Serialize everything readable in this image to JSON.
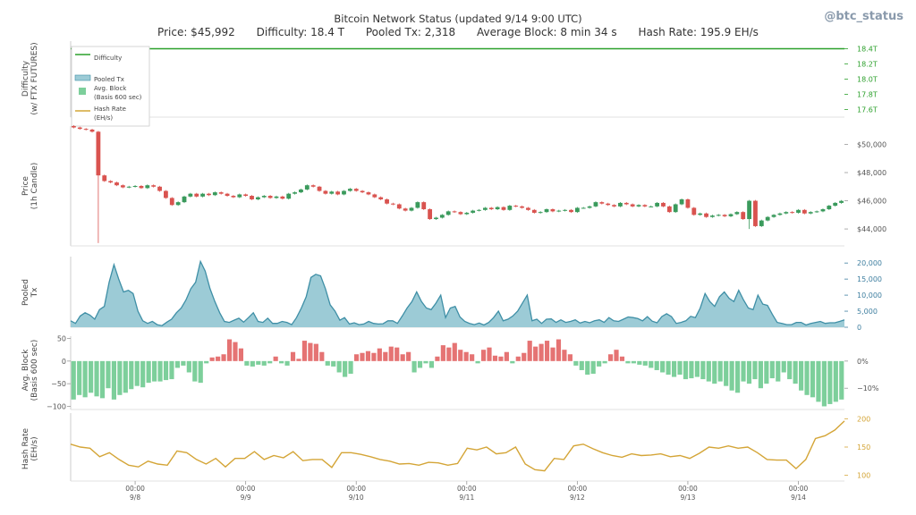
{
  "header": {
    "title": "Bitcoin Network Status (updated 9/14 9:00 UTC)",
    "stats": [
      "Price: $45,992",
      "Difficulty: 18.4 T",
      "Pooled Tx: 2,318",
      "Average Block: 8 min 34 s",
      "Hash Rate: 195.9 EH/s"
    ],
    "handle": "@btc_status"
  },
  "colors": {
    "difficulty": "#2ca02c",
    "candle_up": "#3a9a5c",
    "candle_down": "#d9534f",
    "pooled_fill": "#9ccbd6",
    "pooled_line": "#3f8fa6",
    "block_pos": "#e57373",
    "block_neg": "#7dcf9b",
    "hash_rate": "#d4a537",
    "axis_text": "#555555",
    "pooled_axis": "#3f7fa0"
  },
  "chart_data": [
    {
      "type": "line",
      "panel": "difficulty",
      "ylabel": [
        "Difficulty",
        "(w/ FTX FUTURES)"
      ],
      "yticks": [
        "18.4T",
        "18.2T",
        "18.0T",
        "17.8T",
        "17.6T"
      ],
      "ytick_values": [
        18.4,
        18.2,
        18.0,
        17.8,
        17.6
      ],
      "ylim": [
        17.5,
        18.5
      ],
      "x": [
        0,
        168
      ],
      "values": [
        18.4,
        18.4
      ],
      "legend": [
        "Difficulty",
        "Pooled Tx",
        "Avg. Block\n(Basis 600 sec)",
        "Hash Rate\n(EH/s)"
      ],
      "legend_position": "top-left"
    },
    {
      "type": "candlestick",
      "panel": "price",
      "ylabel": [
        "Price",
        "(1h Candle)"
      ],
      "yticks": [
        "$50,000",
        "$48,000",
        "$46,000",
        "$44,000"
      ],
      "ytick_values": [
        50000,
        48000,
        46000,
        44000
      ],
      "ylim": [
        42800,
        51300
      ],
      "close": [
        51200,
        51100,
        51050,
        50900,
        47800,
        47400,
        47300,
        47100,
        46950,
        47000,
        47050,
        46900,
        47100,
        47000,
        46700,
        46200,
        45700,
        45900,
        46300,
        46500,
        46300,
        46500,
        46400,
        46600,
        46500,
        46350,
        46250,
        46450,
        46350,
        46100,
        46250,
        46350,
        46200,
        46300,
        46150,
        46500,
        46600,
        46800,
        47100,
        47000,
        46700,
        46500,
        46650,
        46450,
        46700,
        46850,
        46700,
        46600,
        46450,
        46250,
        46100,
        45800,
        45750,
        45450,
        45300,
        45500,
        45900,
        45400,
        44700,
        44800,
        45000,
        45250,
        45200,
        45050,
        45150,
        45300,
        45350,
        45500,
        45400,
        45550,
        45350,
        45650,
        45600,
        45500,
        45350,
        45150,
        45200,
        45400,
        45250,
        45300,
        45350,
        45200,
        45500,
        45500,
        45600,
        45900,
        45800,
        45700,
        45600,
        45850,
        45750,
        45600,
        45700,
        45600,
        45600,
        45850,
        45600,
        45200,
        45750,
        46100,
        45500,
        45000,
        45100,
        44850,
        44950,
        45000,
        44900,
        45050,
        45200,
        44700,
        46000,
        44200,
        44600,
        44850,
        45000,
        45100,
        45200,
        45150,
        45350,
        45100,
        45200,
        45250,
        45400,
        45650,
        45850,
        45992
      ]
    },
    {
      "type": "area",
      "panel": "pooled_tx",
      "ylabel": [
        "Pooled",
        "Tx"
      ],
      "yticks": [
        "20,000",
        "15,000",
        "10,000",
        "5,000",
        "0"
      ],
      "ytick_values": [
        20000,
        15000,
        10000,
        5000,
        0
      ],
      "ylim": [
        0,
        22000
      ],
      "values": [
        2000,
        1200,
        3500,
        4500,
        3800,
        2500,
        5500,
        6500,
        14000,
        19500,
        15000,
        11000,
        11500,
        10500,
        5000,
        2000,
        1200,
        1800,
        800,
        500,
        1600,
        2500,
        4500,
        6000,
        8500,
        12000,
        14000,
        20500,
        17500,
        12000,
        8000,
        4500,
        1800,
        1500,
        2200,
        2800,
        1600,
        3000,
        4500,
        1800,
        1500,
        2800,
        1200,
        1200,
        1800,
        1500,
        800,
        3000,
        6000,
        9500,
        15500,
        16500,
        16000,
        12000,
        7000,
        5000,
        2200,
        3000,
        1000,
        1400,
        800,
        1000,
        1800,
        1200,
        1000,
        1100,
        2000,
        2000,
        1200,
        3500,
        6000,
        8000,
        11000,
        8000,
        6000,
        5500,
        7500,
        10000,
        3000,
        6000,
        6500,
        3200,
        1800,
        1200,
        800,
        1300,
        700,
        1500,
        3000,
        5000,
        2000,
        2500,
        3500,
        5000,
        7500,
        10000,
        2000,
        2500,
        1200,
        2500,
        2600,
        1500,
        2300,
        1500,
        1800,
        2300,
        1300,
        1800,
        1400,
        2000,
        2300,
        1500,
        3000,
        2000,
        1800,
        2500,
        3200,
        3000,
        2700,
        2000,
        3300,
        1900,
        1400,
        3300,
        4200,
        3300,
        1200,
        1500,
        2000,
        3400,
        3000,
        6000,
        10500,
        8000,
        6500,
        9500,
        11000,
        9000,
        8000,
        11500,
        8500,
        6000,
        5500,
        10000,
        7200,
        6800,
        4000,
        1500,
        1200,
        800,
        800,
        1500,
        1500,
        700,
        1200,
        1500,
        1800,
        1200,
        1400,
        1400,
        1800,
        2318
      ]
    },
    {
      "type": "bar",
      "panel": "avg_block",
      "ylabel": [
        "Avg. Block",
        "(Basis 600 sec)"
      ],
      "yticks": [
        "50",
        "0",
        "−50",
        "−100"
      ],
      "ytick_values": [
        50,
        0,
        -50,
        -100
      ],
      "yticks_right": [
        "0%",
        "−10%"
      ],
      "ytick_right_values": [
        0,
        -60
      ],
      "ylim": [
        -107,
        55
      ],
      "values": [
        -85,
        -75,
        -80,
        -70,
        -78,
        -82,
        -60,
        -85,
        -75,
        -70,
        -62,
        -55,
        -58,
        -48,
        -45,
        -45,
        -42,
        -40,
        -15,
        -10,
        -25,
        -45,
        -48,
        -5,
        8,
        10,
        15,
        48,
        42,
        28,
        -10,
        -12,
        -8,
        -10,
        -5,
        10,
        -5,
        -10,
        20,
        5,
        45,
        40,
        38,
        20,
        -10,
        -12,
        -25,
        -35,
        -28,
        15,
        18,
        22,
        18,
        28,
        20,
        32,
        30,
        15,
        20,
        -25,
        -15,
        -5,
        -15,
        10,
        35,
        30,
        40,
        25,
        20,
        15,
        -5,
        25,
        30,
        12,
        10,
        20,
        -5,
        10,
        18,
        45,
        32,
        38,
        45,
        30,
        48,
        25,
        15,
        -10,
        -20,
        -30,
        -28,
        -12,
        -5,
        15,
        25,
        10,
        -5,
        -5,
        -8,
        -10,
        -15,
        -20,
        -25,
        -30,
        -35,
        -30,
        -40,
        -38,
        -35,
        -40,
        -45,
        -50,
        -45,
        -55,
        -65,
        -70,
        -45,
        -50,
        -40,
        -60,
        -50,
        -38,
        -45,
        -25,
        -40,
        -50,
        -65,
        -75,
        -80,
        -90,
        -100,
        -95,
        -90,
        -85
      ]
    },
    {
      "type": "line",
      "panel": "hash_rate",
      "ylabel": [
        "Hash Rate",
        "(EH/s)"
      ],
      "yticks": [
        "200",
        "150",
        "100"
      ],
      "ytick_values": [
        200,
        150,
        100
      ],
      "ylim": [
        90,
        210
      ],
      "x_ticks": [
        "00:00\n9/8",
        "00:00\n9/9",
        "00:00\n9/10",
        "00:00\n9/11",
        "00:00\n9/12",
        "00:00\n9/13",
        "00:00\n9/14"
      ],
      "values": [
        155,
        150,
        148,
        133,
        140,
        128,
        118,
        115,
        125,
        120,
        118,
        143,
        140,
        128,
        120,
        130,
        115,
        130,
        130,
        142,
        128,
        135,
        131,
        142,
        126,
        128,
        128,
        114,
        140,
        140,
        137,
        133,
        128,
        125,
        120,
        121,
        118,
        123,
        122,
        118,
        121,
        148,
        145,
        150,
        138,
        140,
        150,
        120,
        110,
        108,
        130,
        128,
        152,
        155,
        147,
        140,
        135,
        132,
        138,
        135,
        136,
        138,
        133,
        135,
        130,
        139,
        150,
        148,
        152,
        148,
        150,
        140,
        128,
        127,
        127,
        112,
        128,
        165,
        170,
        180,
        195.9
      ]
    }
  ]
}
